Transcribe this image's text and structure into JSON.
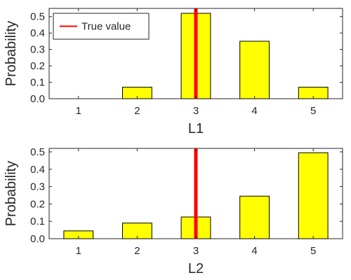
{
  "colors": {
    "bar_fill": "#ffff00",
    "bar_edge": "#000000",
    "true_value_line": "#ff0000",
    "axes": "#262626"
  },
  "chart_data": [
    {
      "type": "bar",
      "categories": [
        "1",
        "2",
        "3",
        "4",
        "5"
      ],
      "values": [
        0,
        0.07,
        0.52,
        0.35,
        0.07
      ],
      "true_value": 3,
      "xlabel": "L1",
      "ylabel": "Probability",
      "ylim": [
        0,
        0.55
      ],
      "yticks": [
        "0.0",
        "0.1",
        "0.2",
        "0.3",
        "0.4",
        "0.5"
      ],
      "legend": {
        "label": "True value",
        "placement": "top-left"
      },
      "grid": false
    },
    {
      "type": "bar",
      "categories": [
        "1",
        "2",
        "3",
        "4",
        "5"
      ],
      "values": [
        0.045,
        0.09,
        0.125,
        0.245,
        0.495
      ],
      "true_value": 3,
      "xlabel": "L2",
      "ylabel": "Probability",
      "ylim": [
        0,
        0.52
      ],
      "yticks": [
        "0.0",
        "0.1",
        "0.2",
        "0.3",
        "0.4",
        "0.5"
      ],
      "grid": false
    }
  ]
}
